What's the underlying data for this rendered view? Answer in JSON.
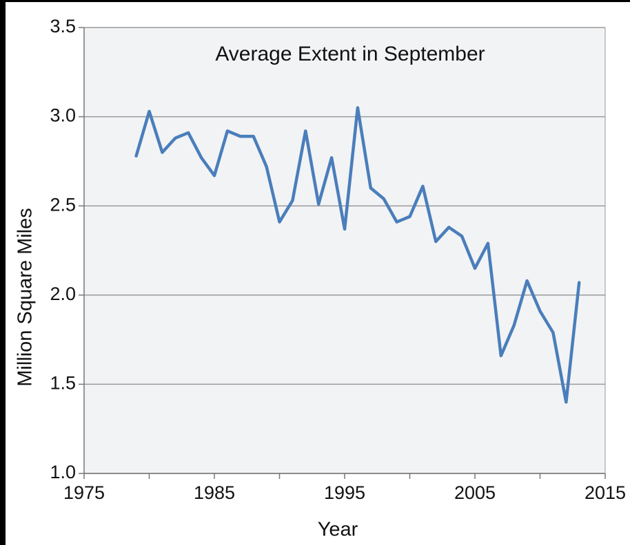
{
  "chart_data": {
    "type": "line",
    "title": "Average Extent in September",
    "x_label": "Year",
    "y_label": "Million Square Miles",
    "x": [
      1979,
      1980,
      1981,
      1982,
      1983,
      1984,
      1985,
      1986,
      1987,
      1988,
      1989,
      1990,
      1991,
      1992,
      1993,
      1994,
      1995,
      1996,
      1997,
      1998,
      1999,
      2000,
      2001,
      2002,
      2003,
      2004,
      2005,
      2006,
      2007,
      2008,
      2009,
      2010,
      2011,
      2012,
      2013
    ],
    "series": [
      {
        "name": "Average Extent in September",
        "color": "#4a7ebb",
        "values": [
          2.78,
          3.03,
          2.8,
          2.88,
          2.91,
          2.77,
          2.67,
          2.92,
          2.89,
          2.89,
          2.72,
          2.41,
          2.53,
          2.92,
          2.51,
          2.77,
          2.37,
          3.05,
          2.6,
          2.54,
          2.41,
          2.44,
          2.61,
          2.3,
          2.38,
          2.33,
          2.15,
          2.29,
          1.66,
          1.83,
          2.08,
          1.91,
          1.79,
          1.4,
          2.07
        ]
      }
    ],
    "xlim": [
      1975,
      2015
    ],
    "xticks": [
      1975,
      1985,
      1995,
      2005,
      2015
    ],
    "xticks_minor": [
      1980,
      1990,
      2000,
      2010
    ],
    "ylim": [
      1.0,
      3.5
    ],
    "yticks": [
      {
        "value": 1.0,
        "label": "1.0"
      },
      1.5,
      {
        "value": 2.0,
        "label": "2.0"
      },
      2.5,
      {
        "value": 3.0,
        "label": "3.0"
      },
      3.5
    ],
    "grid": true
  }
}
